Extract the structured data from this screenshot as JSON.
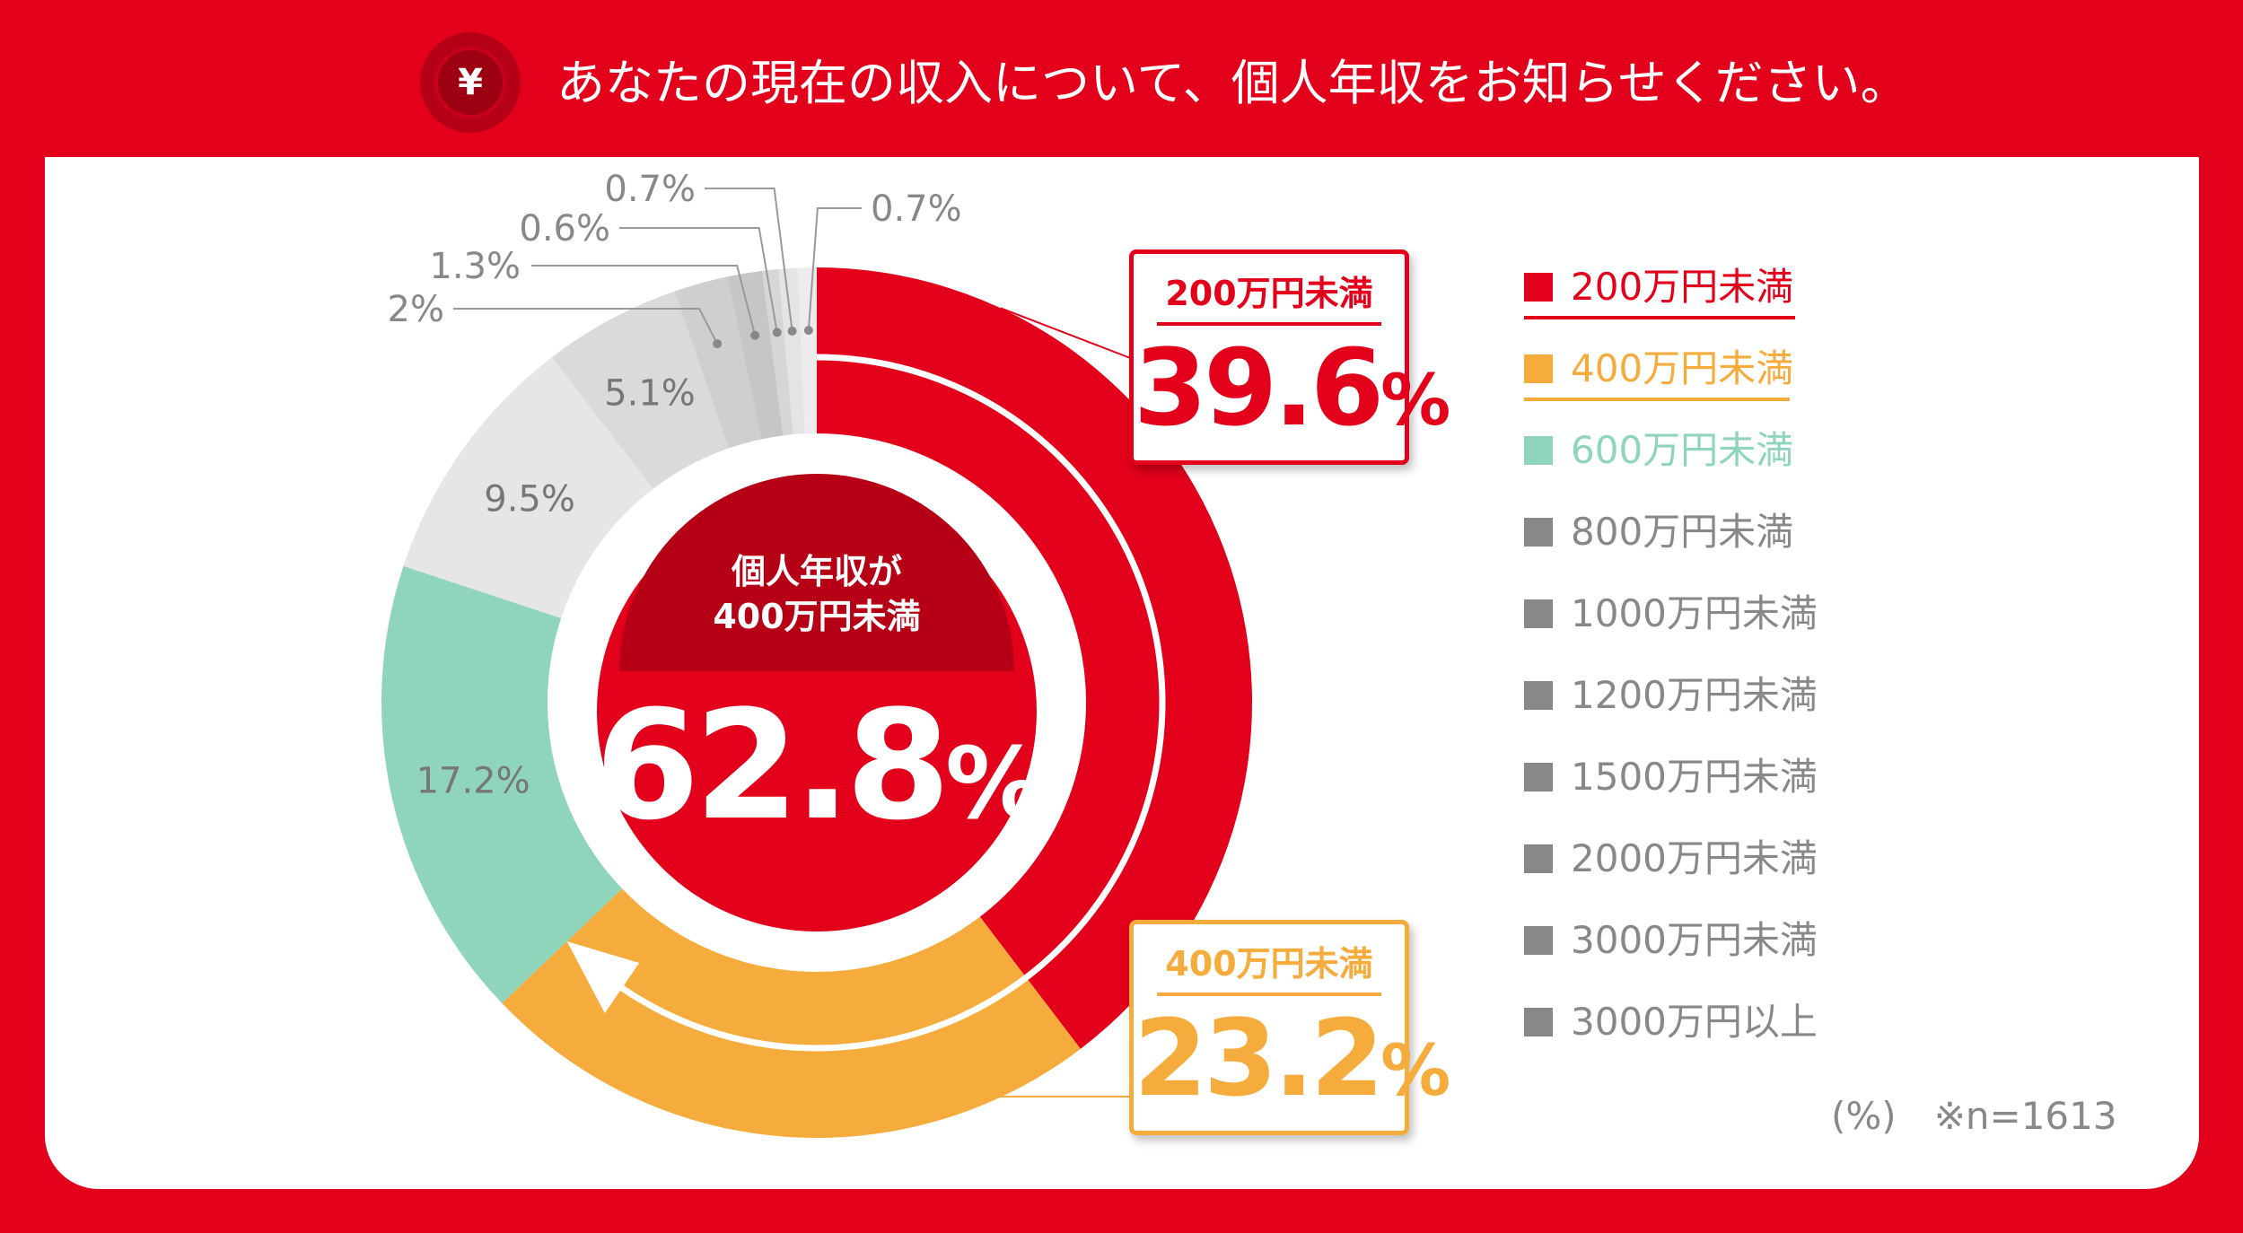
{
  "header": {
    "title": "あなたの現在の収入について、個人年収をお知らせください。",
    "icon": "yen-icon",
    "icon_text": "¥"
  },
  "colors": {
    "background": "#e2001a",
    "under200": "#e2001a",
    "under400": "#f5ac3c",
    "under600": "#8fd5bb",
    "under800": "#e6e6e6",
    "under1000": "#dadada",
    "under1200": "#cfcfcf",
    "under1500": "#c6c6c6",
    "under2000": "#d6d6d6",
    "under3000": "#e4e4e4",
    "over3000": "#ececec",
    "legend_gray": "#888888",
    "center_dark": "#b50016"
  },
  "chart_data": {
    "type": "pie",
    "donut": true,
    "unit": "(%)",
    "sample_note": "※n=1613",
    "series": [
      {
        "category": "200万円未満",
        "value": 39.6,
        "label": ""
      },
      {
        "category": "400万円未満",
        "value": 23.2,
        "label": ""
      },
      {
        "category": "600万円未満",
        "value": 17.2,
        "label": "17.2%"
      },
      {
        "category": "800万円未満",
        "value": 9.5,
        "label": "9.5%"
      },
      {
        "category": "1000万円未満",
        "value": 5.1,
        "label": "5.1%"
      },
      {
        "category": "1200万円未満",
        "value": 2.0,
        "label": "2%"
      },
      {
        "category": "1500万円未満",
        "value": 1.3,
        "label": "1.3%"
      },
      {
        "category": "2000万円未満",
        "value": 0.6,
        "label": "0.6%"
      },
      {
        "category": "3000万円未満",
        "value": 0.7,
        "label": "0.7%"
      },
      {
        "category": "3000万円以上",
        "value": 0.7,
        "label": "0.7%"
      }
    ],
    "center": {
      "label_line1": "個人年収が",
      "label_line2": "400万円未満",
      "value": 62.8,
      "number": "62.8",
      "percent_sign": "%"
    },
    "callouts": [
      {
        "label": "200万円未満",
        "number": "39.6",
        "percent_sign": "%"
      },
      {
        "label": "400万円未満",
        "number": "23.2",
        "percent_sign": "%"
      }
    ],
    "legend": [
      "200万円未満",
      "400万円未満",
      "600万円未満",
      "800万円未満",
      "1000万円未満",
      "1200万円未満",
      "1500万円未満",
      "2000万円未満",
      "3000万円未満",
      "3000万円以上"
    ]
  }
}
